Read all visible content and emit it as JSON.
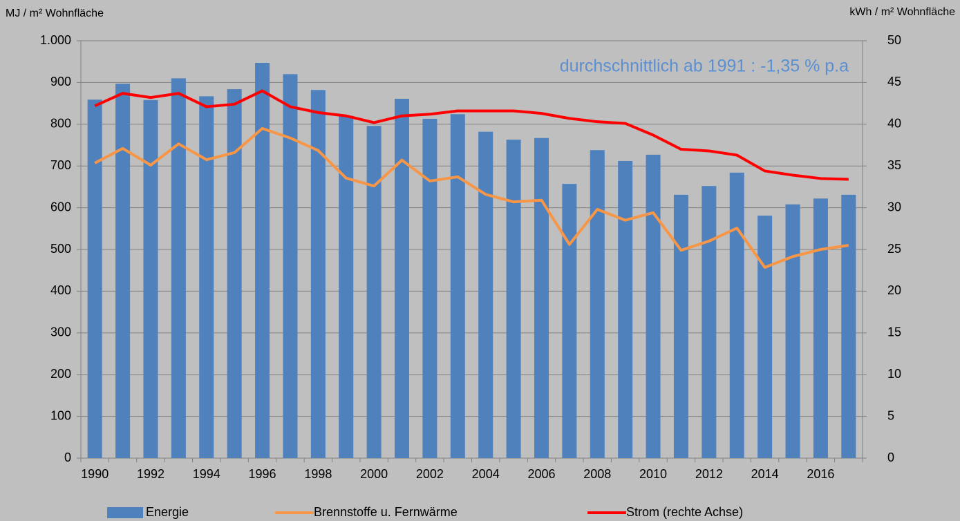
{
  "chart_data": {
    "type": "bar",
    "y_label": "MJ / m² Wohnfläche",
    "y2_label": "kWh / m² Wohnfläche",
    "annotation": "durchschnittlich ab 1991 :  -1,35 % p.a",
    "categories": [
      "1990",
      null,
      "1992",
      null,
      "1994",
      null,
      "1996",
      null,
      "1998",
      null,
      "2000",
      null,
      "2002",
      null,
      "2004",
      null,
      "2006",
      null,
      "2008",
      null,
      "2010",
      null,
      "2012",
      null,
      "2014",
      null,
      "2016",
      null
    ],
    "series": [
      {
        "name": "Energie",
        "type": "bar",
        "color": "#4f81bd",
        "values": [
          859,
          897,
          858,
          910,
          867,
          884,
          947,
          920,
          882,
          820,
          796,
          861,
          813,
          824,
          782,
          763,
          767,
          657,
          738,
          712,
          727,
          631,
          652,
          684,
          581,
          608,
          622,
          631
        ]
      },
      {
        "name": "Brennstoffe u. Fernwärme",
        "type": "line",
        "color": "#f79646",
        "values": [
          707,
          742,
          702,
          753,
          715,
          732,
          790,
          767,
          737,
          671,
          652,
          714,
          664,
          674,
          632,
          614,
          618,
          512,
          596,
          570,
          588,
          498,
          520,
          551,
          457,
          483,
          500,
          510
        ]
      },
      {
        "name": "Strom (rechte Achse)",
        "type": "line",
        "color": "#ff0000",
        "axis": "y2",
        "values": [
          42.2,
          43.7,
          43.2,
          43.7,
          42.1,
          42.4,
          44.0,
          42.1,
          41.4,
          41.0,
          40.2,
          41.0,
          41.2,
          41.6,
          41.6,
          41.6,
          41.3,
          40.7,
          40.3,
          40.1,
          38.7,
          37.0,
          36.8,
          36.3,
          34.4,
          33.9,
          33.5,
          33.4
        ]
      }
    ],
    "ylim": [
      0,
      1000
    ],
    "yticks": [
      0,
      100,
      200,
      300,
      400,
      500,
      600,
      700,
      800,
      900,
      {
        "value": 1000,
        "label": "1.000"
      }
    ],
    "y2lim": [
      0,
      50
    ],
    "y2ticks": [
      0,
      5,
      10,
      15,
      20,
      25,
      30,
      35,
      40,
      45,
      50
    ],
    "grid": true,
    "legend": "bottom"
  }
}
